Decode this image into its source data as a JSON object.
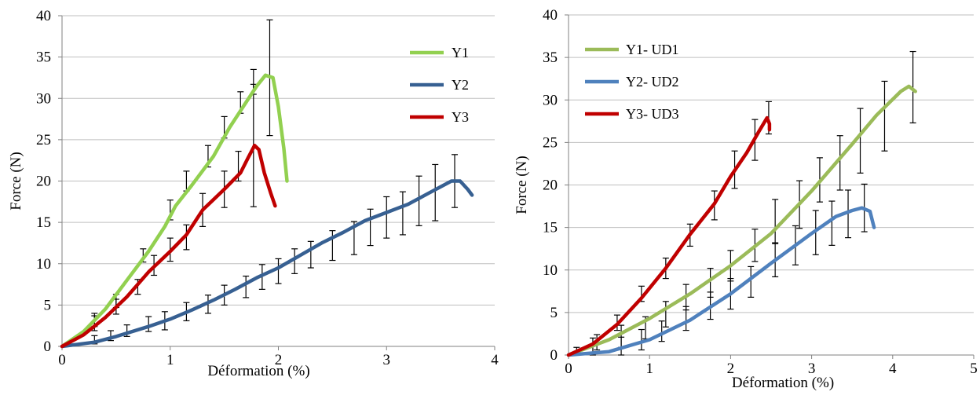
{
  "chart_data": [
    {
      "type": "line",
      "xlabel": "Déformation (%)",
      "ylabel": "Force (N)",
      "xlim": [
        0,
        4
      ],
      "ylim": [
        0,
        40
      ],
      "xticks": [
        0,
        1,
        2,
        3,
        4
      ],
      "yticks": [
        0,
        5,
        10,
        15,
        20,
        25,
        30,
        35,
        40
      ],
      "grid": "horizontal",
      "legend_position": "top-right",
      "series": [
        {
          "name": "Y1",
          "color": "#92D050",
          "points": [
            [
              0,
              0
            ],
            [
              0.2,
              1.8
            ],
            [
              0.4,
              4.5
            ],
            [
              0.6,
              8
            ],
            [
              0.8,
              11.5
            ],
            [
              0.95,
              14.5
            ],
            [
              1.05,
              17
            ],
            [
              1.2,
              19.5
            ],
            [
              1.4,
              23
            ],
            [
              1.55,
              26.5
            ],
            [
              1.7,
              29.5
            ],
            [
              1.8,
              31.5
            ],
            [
              1.88,
              32.8
            ],
            [
              1.95,
              32.5
            ],
            [
              2.0,
              29
            ],
            [
              2.05,
              24
            ],
            [
              2.08,
              20
            ]
          ],
          "error_bars": [
            [
              0.3,
              3.2,
              0.8
            ],
            [
              0.5,
              5.5,
              0.8
            ],
            [
              0.75,
              11,
              0.8
            ],
            [
              1.0,
              16.5,
              1.2
            ],
            [
              1.15,
              20,
              1.2
            ],
            [
              1.35,
              23,
              1.3
            ],
            [
              1.5,
              26.5,
              1.3
            ],
            [
              1.65,
              29.5,
              1.3
            ],
            [
              1.77,
              32,
              1.5
            ],
            [
              1.92,
              32.5,
              7.0
            ]
          ]
        },
        {
          "name": "Y2",
          "color": "#376092",
          "points": [
            [
              0,
              0
            ],
            [
              0.3,
              0.5
            ],
            [
              0.5,
              1.2
            ],
            [
              0.8,
              2.4
            ],
            [
              1.0,
              3.3
            ],
            [
              1.2,
              4.4
            ],
            [
              1.4,
              5.6
            ],
            [
              1.6,
              6.9
            ],
            [
              1.8,
              8.3
            ],
            [
              2.0,
              9.5
            ],
            [
              2.2,
              11
            ],
            [
              2.4,
              12.5
            ],
            [
              2.6,
              13.8
            ],
            [
              2.8,
              15.2
            ],
            [
              3.0,
              16.2
            ],
            [
              3.2,
              17.2
            ],
            [
              3.4,
              18.6
            ],
            [
              3.6,
              20
            ],
            [
              3.68,
              20
            ],
            [
              3.75,
              19
            ],
            [
              3.79,
              18.3
            ]
          ],
          "error_bars": [
            [
              0.3,
              0.8,
              0.5
            ],
            [
              0.45,
              1.3,
              0.6
            ],
            [
              0.6,
              1.9,
              0.7
            ],
            [
              0.8,
              2.7,
              0.9
            ],
            [
              0.95,
              3.1,
              1.1
            ],
            [
              1.15,
              4.2,
              1.1
            ],
            [
              1.35,
              5.1,
              1.1
            ],
            [
              1.5,
              6.2,
              1.2
            ],
            [
              1.7,
              7.2,
              1.3
            ],
            [
              1.85,
              8.4,
              1.5
            ],
            [
              2.0,
              9.1,
              1.5
            ],
            [
              2.15,
              10.3,
              1.5
            ],
            [
              2.3,
              11.1,
              1.6
            ],
            [
              2.5,
              12.2,
              1.8
            ],
            [
              2.7,
              13.1,
              2.0
            ],
            [
              2.85,
              14.4,
              2.2
            ],
            [
              3.0,
              15.6,
              2.5
            ],
            [
              3.15,
              16.1,
              2.6
            ],
            [
              3.3,
              17.6,
              3.0
            ],
            [
              3.45,
              18.6,
              3.4
            ],
            [
              3.63,
              20,
              3.2
            ]
          ]
        },
        {
          "name": "Y3",
          "color": "#C00000",
          "points": [
            [
              0,
              0
            ],
            [
              0.2,
              1.4
            ],
            [
              0.4,
              3.5
            ],
            [
              0.6,
              6
            ],
            [
              0.8,
              9
            ],
            [
              1.0,
              11.5
            ],
            [
              1.15,
              13.5
            ],
            [
              1.3,
              16.5
            ],
            [
              1.5,
              19
            ],
            [
              1.65,
              21
            ],
            [
              1.72,
              22.8
            ],
            [
              1.78,
              24.3
            ],
            [
              1.82,
              23.8
            ],
            [
              1.87,
              21
            ],
            [
              1.93,
              18.5
            ],
            [
              1.97,
              17
            ]
          ],
          "error_bars": [
            [
              0.3,
              2.8,
              0.9
            ],
            [
              0.5,
              4.8,
              0.9
            ],
            [
              0.7,
              7.2,
              0.9
            ],
            [
              0.85,
              9.8,
              1.2
            ],
            [
              1.0,
              11.7,
              1.4
            ],
            [
              1.15,
              13.2,
              1.5
            ],
            [
              1.3,
              16.5,
              2.0
            ],
            [
              1.5,
              19,
              2.2
            ],
            [
              1.63,
              21.8,
              1.8
            ],
            [
              1.77,
              24.3,
              7.4
            ]
          ]
        }
      ]
    },
    {
      "type": "line",
      "xlabel": "Déformation (%)",
      "ylabel": "Force (N)",
      "xlim": [
        0,
        5
      ],
      "ylim": [
        0,
        40
      ],
      "xticks": [
        0,
        1,
        2,
        3,
        4,
        5
      ],
      "yticks": [
        0,
        5,
        10,
        15,
        20,
        25,
        30,
        35,
        40
      ],
      "grid": "horizontal",
      "legend_position": "top-left",
      "series": [
        {
          "name": "Y1- UD1",
          "color": "#9BBB59",
          "points": [
            [
              0,
              0
            ],
            [
              0.5,
              1.8
            ],
            [
              1.0,
              4.3
            ],
            [
              1.5,
              7.2
            ],
            [
              2.0,
              10.5
            ],
            [
              2.5,
              14.3
            ],
            [
              3.0,
              19.3
            ],
            [
              3.5,
              24.8
            ],
            [
              3.8,
              28.2
            ],
            [
              4.1,
              31
            ],
            [
              4.2,
              31.6
            ],
            [
              4.28,
              31
            ]
          ],
          "error_bars": [
            [
              0.3,
              1.0,
              1.0
            ],
            [
              0.65,
              2.2,
              1.3
            ],
            [
              0.95,
              3.2,
              1.3
            ],
            [
              1.2,
              4.8,
              1.5
            ],
            [
              1.45,
              6.8,
              1.5
            ],
            [
              1.75,
              8.5,
              1.7
            ],
            [
              2.0,
              10.5,
              1.8
            ],
            [
              2.3,
              12.9,
              1.9
            ],
            [
              2.55,
              15.7,
              2.6
            ],
            [
              2.85,
              17.7,
              2.8
            ],
            [
              3.1,
              20.6,
              2.6
            ],
            [
              3.35,
              22.6,
              3.2
            ],
            [
              3.6,
              25.2,
              3.8
            ],
            [
              3.9,
              28.1,
              4.1
            ],
            [
              4.25,
              31.5,
              4.2
            ]
          ]
        },
        {
          "name": "Y2- UD2",
          "color": "#4F81BD",
          "points": [
            [
              0,
              0
            ],
            [
              0.5,
              0.4
            ],
            [
              1.0,
              1.8
            ],
            [
              1.5,
              4.1
            ],
            [
              2.0,
              7.2
            ],
            [
              2.5,
              10.8
            ],
            [
              3.0,
              14.3
            ],
            [
              3.3,
              16.3
            ],
            [
              3.5,
              17
            ],
            [
              3.62,
              17.3
            ],
            [
              3.72,
              16.9
            ],
            [
              3.77,
              15
            ]
          ],
          "error_bars": [
            [
              0.65,
              1.0,
              1.1
            ],
            [
              0.9,
              1.8,
              1.2
            ],
            [
              1.15,
              2.8,
              1.2
            ],
            [
              1.45,
              4.3,
              1.4
            ],
            [
              1.75,
              5.8,
              1.6
            ],
            [
              2.0,
              7.2,
              1.8
            ],
            [
              2.25,
              8.6,
              1.8
            ],
            [
              2.55,
              11.2,
              2.0
            ],
            [
              2.8,
              12.9,
              2.3
            ],
            [
              3.05,
              14.4,
              2.6
            ],
            [
              3.25,
              15.5,
              2.6
            ],
            [
              3.45,
              16.6,
              2.8
            ],
            [
              3.65,
              17.3,
              2.8
            ]
          ]
        },
        {
          "name": "Y3- UD3",
          "color": "#C00000",
          "points": [
            [
              0,
              0
            ],
            [
              0.3,
              1.3
            ],
            [
              0.6,
              3.6
            ],
            [
              0.9,
              6.7
            ],
            [
              1.2,
              10.2
            ],
            [
              1.5,
              14.2
            ],
            [
              1.8,
              17.8
            ],
            [
              2.0,
              21
            ],
            [
              2.2,
              23.8
            ],
            [
              2.35,
              26.3
            ],
            [
              2.45,
              27.9
            ],
            [
              2.48,
              27.2
            ],
            [
              2.48,
              26.5
            ]
          ],
          "error_bars": [
            [
              0.1,
              0.5,
              0.4
            ],
            [
              0.35,
              1.5,
              0.9
            ],
            [
              0.6,
              3.8,
              0.9
            ],
            [
              0.9,
              7.2,
              0.9
            ],
            [
              1.2,
              10.2,
              1.2
            ],
            [
              1.5,
              14.1,
              1.3
            ],
            [
              1.8,
              17.6,
              1.7
            ],
            [
              2.05,
              21.8,
              2.2
            ],
            [
              2.3,
              25.3,
              2.4
            ],
            [
              2.47,
              27.9,
              1.9
            ]
          ]
        }
      ]
    }
  ]
}
